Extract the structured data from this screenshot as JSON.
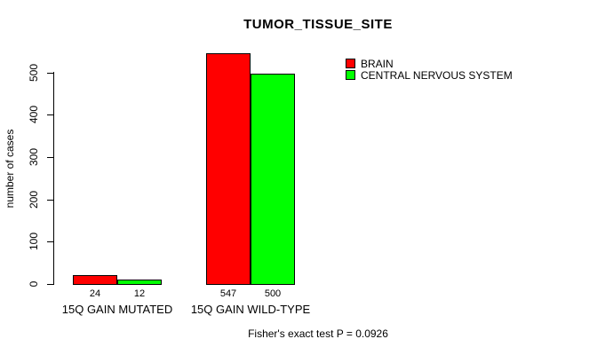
{
  "title": "TUMOR_TISSUE_SITE",
  "footer_note": "Fisher's exact test P = 0.0926",
  "colors": {
    "brain": "#FF0000",
    "central_nervous_system": "#00FF00",
    "axis": "#000000",
    "background": "#FFFFFF"
  },
  "chart_data": {
    "type": "bar",
    "title": "TUMOR_TISSUE_SITE",
    "categories": [
      "15Q GAIN MUTATED",
      "15Q GAIN WILD-TYPE"
    ],
    "series": [
      {
        "name": "BRAIN",
        "color": "#FF0000",
        "values": [
          24,
          547
        ]
      },
      {
        "name": "CENTRAL NERVOUS SYSTEM",
        "color": "#00FF00",
        "values": [
          12,
          500
        ]
      }
    ],
    "bar_value_labels": [
      [
        24,
        12
      ],
      [
        547,
        500
      ]
    ],
    "xlabel": "",
    "ylabel": "number of cases",
    "ylim": [
      0,
      500
    ],
    "yticks": [
      0,
      100,
      200,
      300,
      400,
      500
    ],
    "grid": false,
    "legend_position": "top-right-inside",
    "annotation": "Fisher's exact test P = 0.0926"
  }
}
